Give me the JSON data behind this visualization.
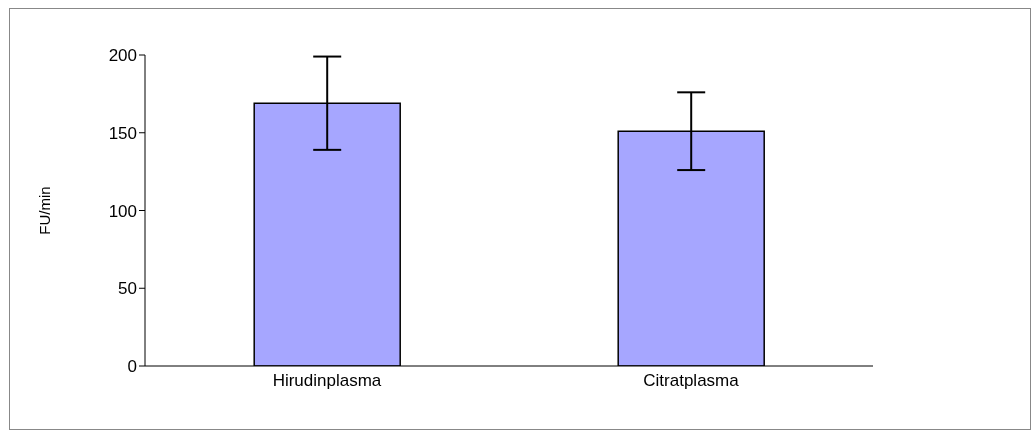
{
  "chart_data": {
    "type": "bar",
    "ylabel": "FU/min",
    "categories": [
      "Hirudinplasma",
      "Citratplasma"
    ],
    "values": [
      169,
      151
    ],
    "errors": [
      30,
      25
    ],
    "color": "#a6a6ff",
    "ylim": [
      0,
      200
    ],
    "yticks": [
      0,
      50,
      100,
      150,
      200
    ]
  }
}
